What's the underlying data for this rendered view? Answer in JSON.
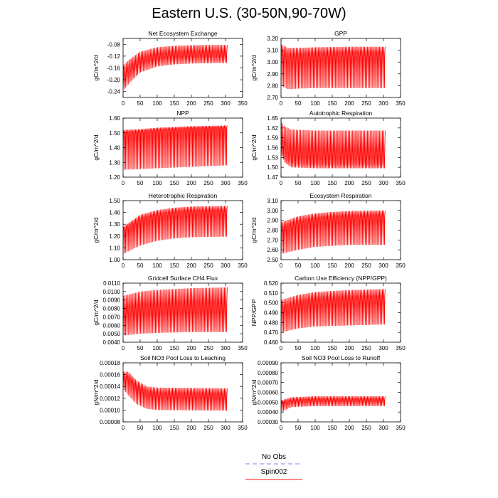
{
  "title": "Eastern U.S. (30-50N,90-70W)",
  "legend": {
    "entries": [
      {
        "name": "No Obs",
        "color": "#9a9af2",
        "dash": true
      },
      {
        "name": "Spin002",
        "color": "#ff4040",
        "dash": false
      }
    ]
  },
  "chart_data": [
    {
      "type": "line",
      "title": "Net Ecosystem Exchange",
      "ylabel": "gC/m^2/d",
      "xlim": [
        0,
        350
      ],
      "xticks": [
        "0",
        "50",
        "100",
        "150",
        "200",
        "250",
        "300",
        "350"
      ],
      "ylim": [
        -0.26,
        -0.06
      ],
      "yticks": [
        "-0.08",
        "-0.12",
        "-0.16",
        "-0.20",
        "-0.24"
      ],
      "series": [
        {
          "color": "#ff0000",
          "x_range": [
            1,
            305
          ],
          "upper": [
            [
              1,
              -0.15
            ],
            [
              20,
              -0.13
            ],
            [
              50,
              -0.105
            ],
            [
              100,
              -0.09
            ],
            [
              150,
              -0.085
            ],
            [
              200,
              -0.083
            ],
            [
              250,
              -0.082
            ],
            [
              305,
              -0.082
            ]
          ],
          "lower": [
            [
              1,
              -0.235
            ],
            [
              20,
              -0.21
            ],
            [
              50,
              -0.175
            ],
            [
              100,
              -0.155
            ],
            [
              150,
              -0.148
            ],
            [
              200,
              -0.145
            ],
            [
              250,
              -0.144
            ],
            [
              305,
              -0.143
            ]
          ],
          "mid": [
            [
              1,
              -0.2
            ],
            [
              20,
              -0.175
            ],
            [
              50,
              -0.145
            ],
            [
              100,
              -0.13
            ],
            [
              150,
              -0.125
            ],
            [
              200,
              -0.123
            ],
            [
              250,
              -0.122
            ],
            [
              305,
              -0.122
            ]
          ]
        }
      ]
    },
    {
      "type": "line",
      "title": "GPP",
      "ylabel": "gC/m^2/d",
      "xlim": [
        0,
        350
      ],
      "xticks": [
        "0",
        "50",
        "100",
        "150",
        "200",
        "250",
        "300",
        "350"
      ],
      "ylim": [
        2.7,
        3.2
      ],
      "yticks": [
        "3.20",
        "3.10",
        "3.00",
        "2.90",
        "2.80",
        "2.70"
      ],
      "series": [
        {
          "color": "#ff0000",
          "x_range": [
            1,
            305
          ],
          "upper": [
            [
              1,
              3.15
            ],
            [
              20,
              3.12
            ],
            [
              50,
              3.12
            ],
            [
              100,
              3.125
            ],
            [
              200,
              3.13
            ],
            [
              305,
              3.13
            ]
          ],
          "lower": [
            [
              1,
              2.8
            ],
            [
              20,
              2.77
            ],
            [
              50,
              2.775
            ],
            [
              100,
              2.78
            ],
            [
              200,
              2.78
            ],
            [
              305,
              2.78
            ]
          ],
          "mid": [
            [
              1,
              3.05
            ],
            [
              20,
              3.01
            ],
            [
              50,
              3.02
            ],
            [
              100,
              3.03
            ],
            [
              200,
              3.04
            ],
            [
              305,
              3.04
            ]
          ]
        }
      ]
    },
    {
      "type": "line",
      "title": "NPP",
      "ylabel": "gC/m^2/d",
      "xlim": [
        0,
        350
      ],
      "xticks": [
        "0",
        "50",
        "100",
        "150",
        "200",
        "250",
        "300",
        "350"
      ],
      "ylim": [
        1.2,
        1.6
      ],
      "yticks": [
        "1.60",
        "1.50",
        "1.40",
        "1.30",
        "1.20"
      ],
      "series": [
        {
          "color": "#ff0000",
          "x_range": [
            1,
            305
          ],
          "upper": [
            [
              1,
              1.52
            ],
            [
              50,
              1.525
            ],
            [
              100,
              1.535
            ],
            [
              200,
              1.545
            ],
            [
              305,
              1.55
            ]
          ],
          "lower": [
            [
              1,
              1.25
            ],
            [
              50,
              1.255
            ],
            [
              100,
              1.26
            ],
            [
              200,
              1.27
            ],
            [
              305,
              1.28
            ]
          ],
          "mid": [
            [
              1,
              1.49
            ],
            [
              50,
              1.5
            ],
            [
              100,
              1.51
            ],
            [
              200,
              1.525
            ],
            [
              305,
              1.53
            ]
          ]
        }
      ]
    },
    {
      "type": "line",
      "title": "Autotrophic Respiration",
      "ylabel": "gC/m^2/d",
      "xlim": [
        0,
        350
      ],
      "xticks": [
        "0",
        "50",
        "100",
        "150",
        "200",
        "250",
        "300",
        "350"
      ],
      "ylim": [
        1.47,
        1.65
      ],
      "yticks": [
        "1.65",
        "1.62",
        "1.59",
        "1.56",
        "1.53",
        "1.50",
        "1.47"
      ],
      "series": [
        {
          "color": "#ff0000",
          "x_range": [
            1,
            305
          ],
          "upper": [
            [
              1,
              1.64
            ],
            [
              10,
              1.625
            ],
            [
              30,
              1.615
            ],
            [
              100,
              1.612
            ],
            [
              305,
              1.612
            ]
          ],
          "lower": [
            [
              1,
              1.54
            ],
            [
              10,
              1.515
            ],
            [
              30,
              1.5
            ],
            [
              100,
              1.497
            ],
            [
              305,
              1.497
            ]
          ],
          "mid": [
            [
              1,
              1.55
            ],
            [
              10,
              1.53
            ],
            [
              30,
              1.515
            ],
            [
              100,
              1.51
            ],
            [
              305,
              1.51
            ]
          ]
        }
      ]
    },
    {
      "type": "line",
      "title": "Heterotrophic Respiration",
      "ylabel": "gC/m^2/d",
      "xlim": [
        0,
        350
      ],
      "xticks": [
        "0",
        "50",
        "100",
        "150",
        "200",
        "250",
        "300",
        "350"
      ],
      "ylim": [
        1.0,
        1.5
      ],
      "yticks": [
        "1.50",
        "1.40",
        "1.30",
        "1.20",
        "1.10",
        "1.00"
      ],
      "series": [
        {
          "color": "#ff0000",
          "x_range": [
            1,
            305
          ],
          "upper": [
            [
              1,
              1.28
            ],
            [
              50,
              1.38
            ],
            [
              100,
              1.42
            ],
            [
              150,
              1.44
            ],
            [
              200,
              1.45
            ],
            [
              305,
              1.455
            ]
          ],
          "lower": [
            [
              1,
              1.05
            ],
            [
              50,
              1.12
            ],
            [
              100,
              1.16
            ],
            [
              150,
              1.18
            ],
            [
              200,
              1.19
            ],
            [
              305,
              1.195
            ]
          ],
          "mid": [
            [
              1,
              1.24
            ],
            [
              50,
              1.32
            ],
            [
              100,
              1.36
            ],
            [
              150,
              1.38
            ],
            [
              200,
              1.39
            ],
            [
              305,
              1.395
            ]
          ]
        }
      ]
    },
    {
      "type": "line",
      "title": "Ecosystem Respiration",
      "ylabel": "gC/m^2/d",
      "xlim": [
        0,
        350
      ],
      "xticks": [
        "0",
        "50",
        "100",
        "150",
        "200",
        "250",
        "300",
        "350"
      ],
      "ylim": [
        2.5,
        3.1
      ],
      "yticks": [
        "3.10",
        "3.00",
        "2.90",
        "2.80",
        "2.70",
        "2.60",
        "2.50"
      ],
      "series": [
        {
          "color": "#ff0000",
          "x_range": [
            1,
            305
          ],
          "upper": [
            [
              1,
              2.88
            ],
            [
              50,
              2.94
            ],
            [
              100,
              2.97
            ],
            [
              150,
              2.985
            ],
            [
              200,
              2.995
            ],
            [
              305,
              3.0
            ]
          ],
          "lower": [
            [
              1,
              2.56
            ],
            [
              50,
              2.6
            ],
            [
              100,
              2.63
            ],
            [
              150,
              2.64
            ],
            [
              200,
              2.65
            ],
            [
              305,
              2.65
            ]
          ],
          "mid": [
            [
              1,
              2.78
            ],
            [
              50,
              2.85
            ],
            [
              100,
              2.88
            ],
            [
              150,
              2.9
            ],
            [
              200,
              2.91
            ],
            [
              305,
              2.92
            ]
          ]
        }
      ]
    },
    {
      "type": "line",
      "title": "Gridcell Surface CH4 Flux",
      "ylabel": "gC/m^2/d",
      "xlim": [
        0,
        350
      ],
      "xticks": [
        "0",
        "50",
        "100",
        "150",
        "200",
        "250",
        "300",
        "350"
      ],
      "ylim": [
        0.004,
        0.011
      ],
      "yticks": [
        "0.0110",
        "0.0100",
        "0.0090",
        "0.0080",
        "0.0070",
        "0.0060",
        "0.0050",
        "0.0040"
      ],
      "series": [
        {
          "color": "#ff0000",
          "x_range": [
            1,
            305
          ],
          "upper": [
            [
              1,
              0.0095
            ],
            [
              50,
              0.01
            ],
            [
              100,
              0.0102
            ],
            [
              200,
              0.0104
            ],
            [
              305,
              0.0105
            ]
          ],
          "lower": [
            [
              1,
              0.0048
            ],
            [
              50,
              0.005
            ],
            [
              100,
              0.0051
            ],
            [
              200,
              0.0052
            ],
            [
              305,
              0.0052
            ]
          ],
          "mid": [
            [
              1,
              0.007
            ],
            [
              50,
              0.0072
            ],
            [
              100,
              0.0073
            ],
            [
              200,
              0.0074
            ],
            [
              305,
              0.0074
            ]
          ]
        }
      ]
    },
    {
      "type": "line",
      "title": "Carbon Use Efficiency (NPP/GPP)",
      "ylabel": "NPP/GPP",
      "xlim": [
        0,
        350
      ],
      "xticks": [
        "0",
        "50",
        "100",
        "150",
        "200",
        "250",
        "300",
        "350"
      ],
      "ylim": [
        0.46,
        0.52
      ],
      "yticks": [
        "0.520",
        "0.510",
        "0.500",
        "0.490",
        "0.480",
        "0.470",
        "0.460"
      ],
      "series": [
        {
          "color": "#ff0000",
          "x_range": [
            1,
            305
          ],
          "upper": [
            [
              1,
              0.503
            ],
            [
              50,
              0.508
            ],
            [
              100,
              0.511
            ],
            [
              200,
              0.513
            ],
            [
              305,
              0.514
            ]
          ],
          "lower": [
            [
              1,
              0.47
            ],
            [
              50,
              0.474
            ],
            [
              100,
              0.476
            ],
            [
              200,
              0.477
            ],
            [
              305,
              0.478
            ]
          ],
          "mid": [
            [
              1,
              0.49
            ],
            [
              50,
              0.495
            ],
            [
              100,
              0.498
            ],
            [
              200,
              0.5
            ],
            [
              305,
              0.501
            ]
          ]
        }
      ]
    },
    {
      "type": "line",
      "title": "Soil NO3 Pool Loss to Leaching",
      "ylabel": "gN/m^2/d",
      "xlim": [
        0,
        350
      ],
      "xticks": [
        "0",
        "50",
        "100",
        "150",
        "200",
        "250",
        "300",
        "350"
      ],
      "ylim": [
        8e-05,
        0.00018
      ],
      "yticks": [
        "0.00018",
        "0.00016",
        "0.00014",
        "0.00012",
        "0.00010",
        "0.00008"
      ],
      "series": [
        {
          "color": "#ff0000",
          "x_range": [
            1,
            305
          ],
          "upper": [
            [
              1,
              0.000165
            ],
            [
              15,
              0.000165
            ],
            [
              40,
              0.00015
            ],
            [
              70,
              0.00014
            ],
            [
              100,
              0.000138
            ],
            [
              305,
              0.000137
            ]
          ],
          "lower": [
            [
              1,
              0.000135
            ],
            [
              15,
              0.000125
            ],
            [
              40,
              0.00011
            ],
            [
              70,
              0.000102
            ],
            [
              100,
              0.0001
            ],
            [
              305,
              9.9e-05
            ]
          ],
          "mid": [
            [
              1,
              0.00015
            ],
            [
              15,
              0.00015
            ],
            [
              40,
              0.000135
            ],
            [
              70,
              0.000125
            ],
            [
              100,
              0.000122
            ],
            [
              305,
              0.00012
            ]
          ]
        }
      ]
    },
    {
      "type": "line",
      "title": "Soil NO3 Pool Loss to Runoff",
      "ylabel": "gN/m^2/d",
      "xlim": [
        0,
        350
      ],
      "xticks": [
        "0",
        "50",
        "100",
        "150",
        "200",
        "250",
        "300",
        "350"
      ],
      "ylim": [
        0.0003,
        0.0009
      ],
      "yticks": [
        "0.00090",
        "0.00080",
        "0.00070",
        "0.00060",
        "0.00050",
        "0.00040",
        "0.00030"
      ],
      "series": [
        {
          "color": "#ff0000",
          "x_range": [
            1,
            305
          ],
          "upper": [
            [
              1,
              0.00052
            ],
            [
              30,
              0.00055
            ],
            [
              100,
              0.00056
            ],
            [
              305,
              0.00056
            ]
          ],
          "lower": [
            [
              1,
              0.0004
            ],
            [
              30,
              0.00045
            ],
            [
              100,
              0.00046
            ],
            [
              305,
              0.00046
            ]
          ],
          "mid": [
            [
              1,
              0.00048
            ],
            [
              30,
              0.0005
            ],
            [
              100,
              0.00051
            ],
            [
              305,
              0.00051
            ]
          ]
        }
      ]
    }
  ]
}
